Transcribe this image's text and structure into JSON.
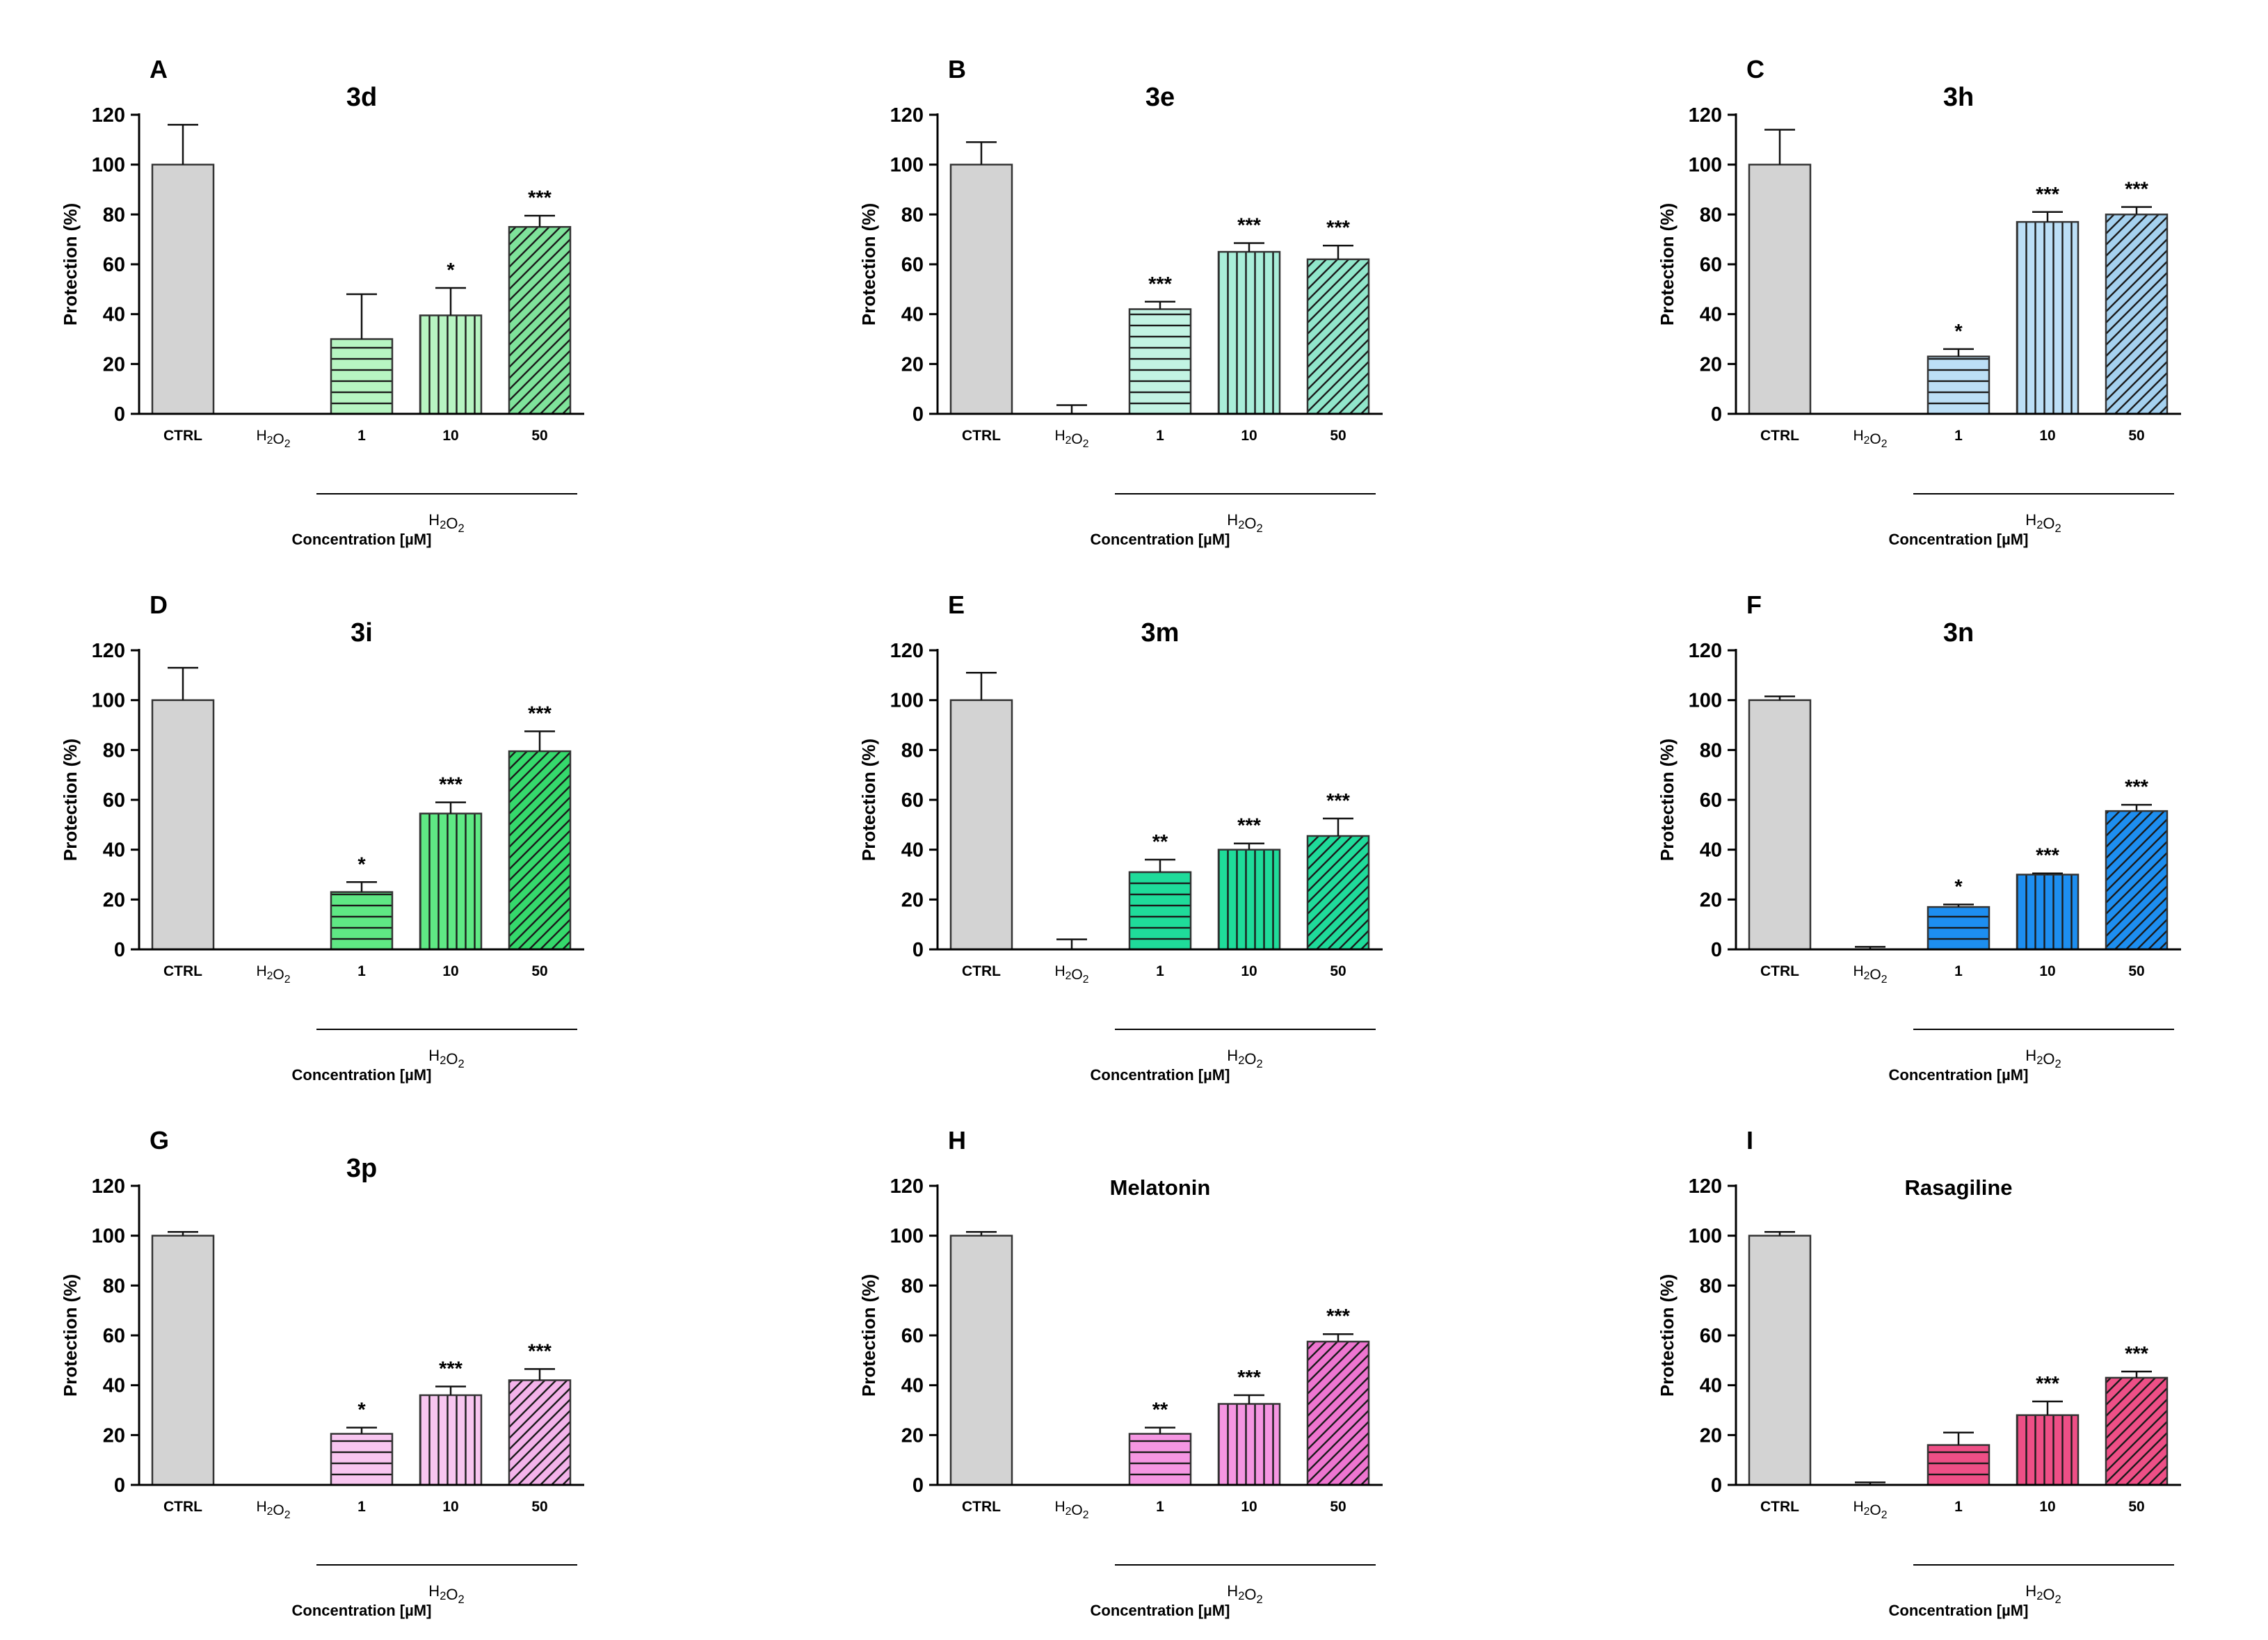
{
  "figure": {
    "chart_data": [
      {
        "type": "bar",
        "letter": "A",
        "title": "3d",
        "categories": [
          "CTRL",
          "H2O2",
          "1",
          "10",
          "50"
        ],
        "values": [
          100,
          0,
          30,
          39.5,
          75
        ],
        "errors": [
          16,
          0,
          18,
          11,
          4.5
        ],
        "significance": [
          "",
          "",
          "",
          "*",
          "***"
        ],
        "colors": [
          "#d3d3d3",
          "#d3d3d3",
          "#b7f5c2",
          "#b7f5c2",
          "#7fe39b"
        ],
        "patterns": [
          "none",
          "none",
          "horizontal",
          "vertical",
          "diagonal"
        ],
        "ylim": [
          0,
          120
        ],
        "yticks": [
          0,
          20,
          40,
          60,
          80,
          100,
          120
        ],
        "ylabel": "Protection (%)",
        "group_label": "H2O2",
        "xlabel": "Concentration [µM]"
      },
      {
        "type": "bar",
        "letter": "B",
        "title": "3e",
        "categories": [
          "CTRL",
          "H2O2",
          "1",
          "10",
          "50"
        ],
        "values": [
          100,
          0,
          42,
          65,
          62
        ],
        "errors": [
          9,
          3.5,
          3,
          3.5,
          5.5
        ],
        "significance": [
          "",
          "",
          "***",
          "***",
          "***"
        ],
        "colors": [
          "#d3d3d3",
          "#d3d3d3",
          "#c2f3e3",
          "#a9eed9",
          "#91e6cb"
        ],
        "patterns": [
          "none",
          "none",
          "horizontal",
          "vertical",
          "diagonal"
        ],
        "ylim": [
          0,
          120
        ],
        "yticks": [
          0,
          20,
          40,
          60,
          80,
          100,
          120
        ],
        "ylabel": "Protection (%)",
        "group_label": "H2O2",
        "xlabel": "Concentration [µM]"
      },
      {
        "type": "bar",
        "letter": "C",
        "title": "3h",
        "categories": [
          "CTRL",
          "H2O2",
          "1",
          "10",
          "50"
        ],
        "values": [
          100,
          0,
          23,
          77,
          80
        ],
        "errors": [
          14,
          0,
          3,
          4,
          3
        ],
        "significance": [
          "",
          "",
          "*",
          "***",
          "***"
        ],
        "colors": [
          "#d3d3d3",
          "#d3d3d3",
          "#bcdff6",
          "#bcdff6",
          "#a5d1ef"
        ],
        "patterns": [
          "none",
          "none",
          "horizontal",
          "vertical",
          "diagonal"
        ],
        "ylim": [
          0,
          120
        ],
        "yticks": [
          0,
          20,
          40,
          60,
          80,
          100,
          120
        ],
        "ylabel": "Protection (%)",
        "group_label": "H2O2",
        "xlabel": "Concentration [µM]"
      },
      {
        "type": "bar",
        "letter": "D",
        "title": "3i",
        "categories": [
          "CTRL",
          "H2O2",
          "1",
          "10",
          "50"
        ],
        "values": [
          100,
          0,
          23,
          54.5,
          79.5
        ],
        "errors": [
          13,
          0,
          4,
          4.5,
          8
        ],
        "significance": [
          "",
          "",
          "*",
          "***",
          "***"
        ],
        "colors": [
          "#d3d3d3",
          "#d3d3d3",
          "#5fe884",
          "#5fe884",
          "#35d96c"
        ],
        "patterns": [
          "none",
          "none",
          "horizontal",
          "vertical",
          "diagonal"
        ],
        "ylim": [
          0,
          120
        ],
        "yticks": [
          0,
          20,
          40,
          60,
          80,
          100,
          120
        ],
        "ylabel": "Protection (%)",
        "group_label": "H2O2",
        "xlabel": "Concentration [µM]"
      },
      {
        "type": "bar",
        "letter": "E",
        "title": "3m",
        "categories": [
          "CTRL",
          "H2O2",
          "1",
          "10",
          "50"
        ],
        "values": [
          100,
          0,
          31,
          40,
          45.5
        ],
        "errors": [
          11,
          4,
          5,
          2.5,
          7
        ],
        "significance": [
          "",
          "",
          "**",
          "***",
          "***"
        ],
        "colors": [
          "#d3d3d3",
          "#d3d3d3",
          "#1fdb9a",
          "#1fdb9a",
          "#1fdb9a"
        ],
        "patterns": [
          "none",
          "none",
          "horizontal",
          "vertical",
          "diagonal"
        ],
        "ylim": [
          0,
          120
        ],
        "yticks": [
          0,
          20,
          40,
          60,
          80,
          100,
          120
        ],
        "ylabel": "Protection (%)",
        "group_label": "H2O2",
        "xlabel": "Concentration [µM]"
      },
      {
        "type": "bar",
        "letter": "F",
        "title": "3n",
        "categories": [
          "CTRL",
          "H2O2",
          "1",
          "10",
          "50"
        ],
        "values": [
          100,
          0,
          17,
          30,
          55.5
        ],
        "errors": [
          1.5,
          1,
          1,
          0.5,
          2.5
        ],
        "significance": [
          "",
          "",
          "*",
          "***",
          "***"
        ],
        "colors": [
          "#d3d3d3",
          "#d3d3d3",
          "#1d8ef0",
          "#1d8ef0",
          "#1d8ef0"
        ],
        "patterns": [
          "none",
          "none",
          "horizontal",
          "vertical",
          "diagonal"
        ],
        "ylim": [
          0,
          120
        ],
        "yticks": [
          0,
          20,
          40,
          60,
          80,
          100,
          120
        ],
        "ylabel": "Protection (%)",
        "group_label": "H2O2",
        "xlabel": "Concentration [µM]"
      },
      {
        "type": "bar",
        "letter": "G",
        "title": "3p",
        "categories": [
          "CTRL",
          "H2O2",
          "1",
          "10",
          "50"
        ],
        "values": [
          100,
          0,
          20.5,
          36,
          42
        ],
        "errors": [
          1.5,
          0,
          2.5,
          3.5,
          4.5
        ],
        "significance": [
          "",
          "",
          "*",
          "***",
          "***"
        ],
        "colors": [
          "#d3d3d3",
          "#d3d3d3",
          "#f8c6f0",
          "#f8c6f0",
          "#f3b3ea"
        ],
        "patterns": [
          "none",
          "none",
          "horizontal",
          "vertical",
          "diagonal"
        ],
        "ylim": [
          0,
          120
        ],
        "yticks": [
          0,
          20,
          40,
          60,
          80,
          100,
          120
        ],
        "ylabel": "Protection (%)",
        "group_label": "H2O2",
        "xlabel": "Concentration [µM]"
      },
      {
        "type": "bar",
        "letter": "H",
        "title": "Melatonin",
        "categories": [
          "CTRL",
          "H2O2",
          "1",
          "10",
          "50"
        ],
        "values": [
          100,
          0,
          20.5,
          32.5,
          57.5
        ],
        "errors": [
          1.5,
          0,
          2.5,
          3.5,
          3
        ],
        "significance": [
          "",
          "",
          "**",
          "***",
          "***"
        ],
        "colors": [
          "#d3d3d3",
          "#d3d3d3",
          "#f596e2",
          "#f596e2",
          "#ee75d0"
        ],
        "patterns": [
          "none",
          "none",
          "horizontal",
          "vertical",
          "diagonal"
        ],
        "ylim": [
          0,
          120
        ],
        "yticks": [
          0,
          20,
          40,
          60,
          80,
          100,
          120
        ],
        "ylabel": "Protection (%)",
        "group_label": "H2O2",
        "xlabel": "Concentration [µM]"
      },
      {
        "type": "bar",
        "letter": "I",
        "title": "Rasagiline",
        "categories": [
          "CTRL",
          "H2O2",
          "1",
          "10",
          "50"
        ],
        "values": [
          100,
          0,
          16,
          28,
          43
        ],
        "errors": [
          1.5,
          1,
          5,
          5.5,
          2.5
        ],
        "significance": [
          "",
          "",
          "",
          "***",
          "***"
        ],
        "colors": [
          "#d3d3d3",
          "#d3d3d3",
          "#ee4f86",
          "#ee4f86",
          "#ee4f86"
        ],
        "patterns": [
          "none",
          "none",
          "horizontal",
          "vertical",
          "diagonal"
        ],
        "ylim": [
          0,
          120
        ],
        "yticks": [
          0,
          20,
          40,
          60,
          80,
          100,
          120
        ],
        "ylabel": "Protection (%)",
        "group_label": "H2O2",
        "xlabel": "Concentration [µM]"
      }
    ]
  }
}
